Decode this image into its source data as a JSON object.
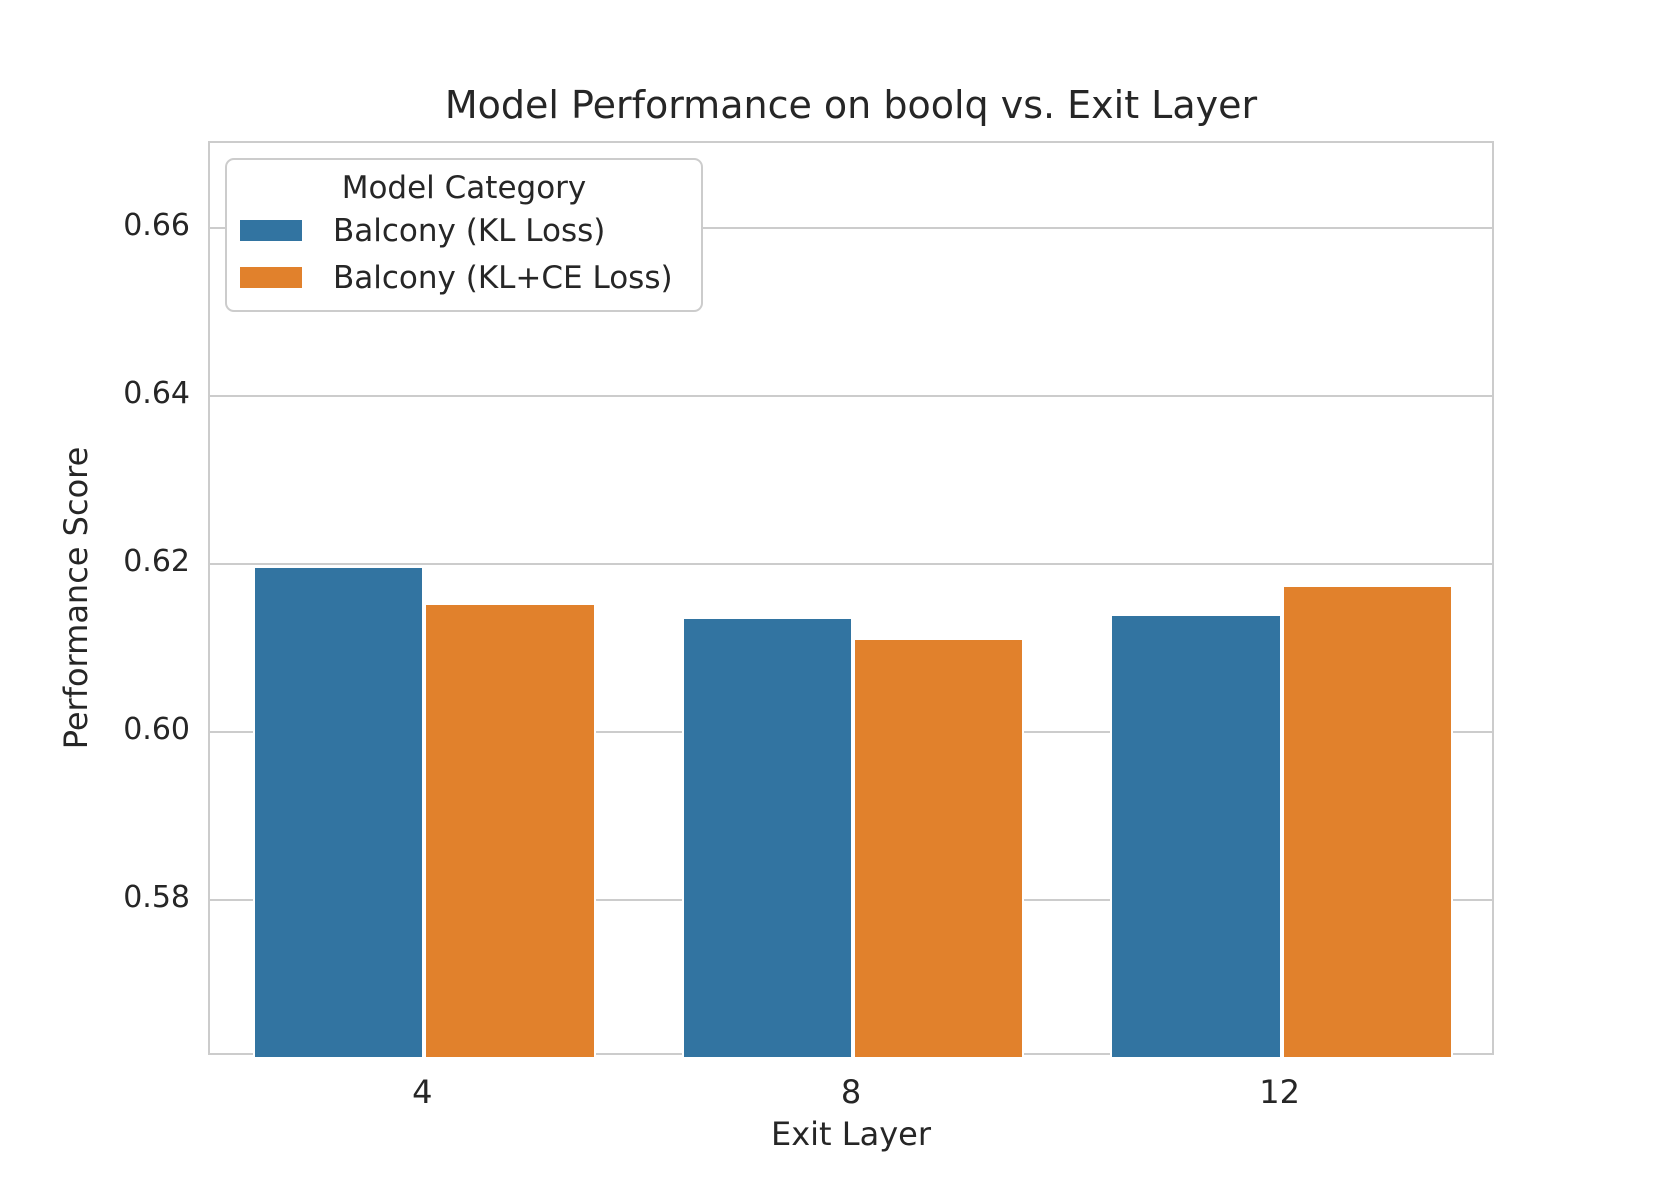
{
  "chart_data": {
    "type": "bar",
    "title": "Model Performance on boolq vs. Exit Layer",
    "xlabel": "Exit Layer",
    "ylabel": "Performance Score",
    "categories": [
      "4",
      "8",
      "12"
    ],
    "series": [
      {
        "name": "Balcony (KL Loss)",
        "color": "#3274a1",
        "values": [
          0.6197,
          0.6137,
          0.614
        ]
      },
      {
        "name": "Balcony (KL+CE Loss)",
        "color": "#e1812c",
        "values": [
          0.6153,
          0.6112,
          0.6175
        ]
      }
    ],
    "ylim": [
      0.5613,
      0.6701
    ],
    "yticks": [
      0.58,
      0.6,
      0.62,
      0.64,
      0.66
    ],
    "ytick_labels": [
      "0.58",
      "0.60",
      "0.62",
      "0.64",
      "0.66"
    ],
    "grid": true,
    "grid_axis": "y",
    "legend": {
      "title": "Model Category",
      "position": "upper left",
      "entries": [
        "Balcony (KL Loss)",
        "Balcony (KL+CE Loss)"
      ]
    },
    "bar_group_width": 0.8
  },
  "colors": {
    "background": "#ffffff",
    "text": "#262626",
    "grid": "#cccccc",
    "spine": "#cccccc",
    "series_blue": "#3274a1",
    "series_orange": "#e1812c",
    "bar_edge": "#ffffff"
  }
}
